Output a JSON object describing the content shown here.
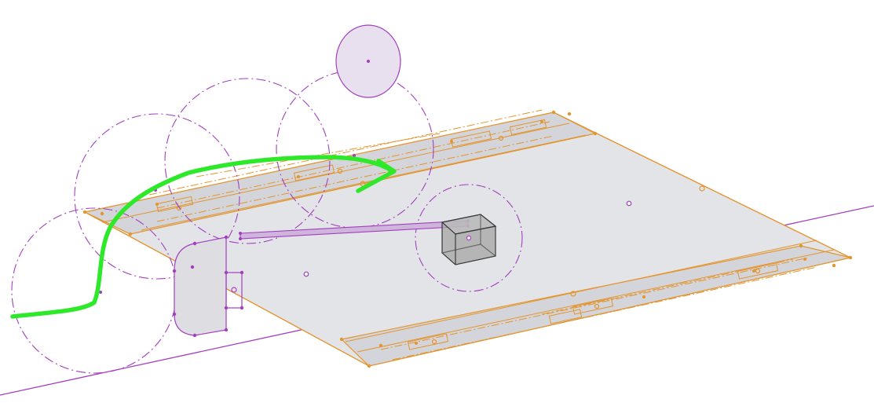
{
  "viewport": {
    "background": "#ffffff",
    "tool": "sketch-3d-cad"
  },
  "colors": {
    "sketch_purple": "#a23fbf",
    "sketch_purple_fill": "#c9a3d9",
    "plate_orange": "#e3952f",
    "plate_fill": "#e3e4e8",
    "plate_edge_fill": "#d4d5da",
    "cube_dark": "#3a3a3a",
    "cube_fill": "#9a9a9a",
    "markup_green": "#2ee82a"
  },
  "entities": {
    "plate": "sheet-plate",
    "plate_ends": "sheet-end-strips",
    "construction_circles": "dash-dot-construction-circles",
    "small_circle": "purple-ellipse",
    "long_line": "purple-reference-line",
    "bracket": "purple-bracket-profile",
    "cube": "gray-cube",
    "slot_slider": "purple-slot",
    "annotation": "green-hand-drawn-arrow"
  },
  "icons": {
    "arrow": "arrow-head-icon"
  }
}
